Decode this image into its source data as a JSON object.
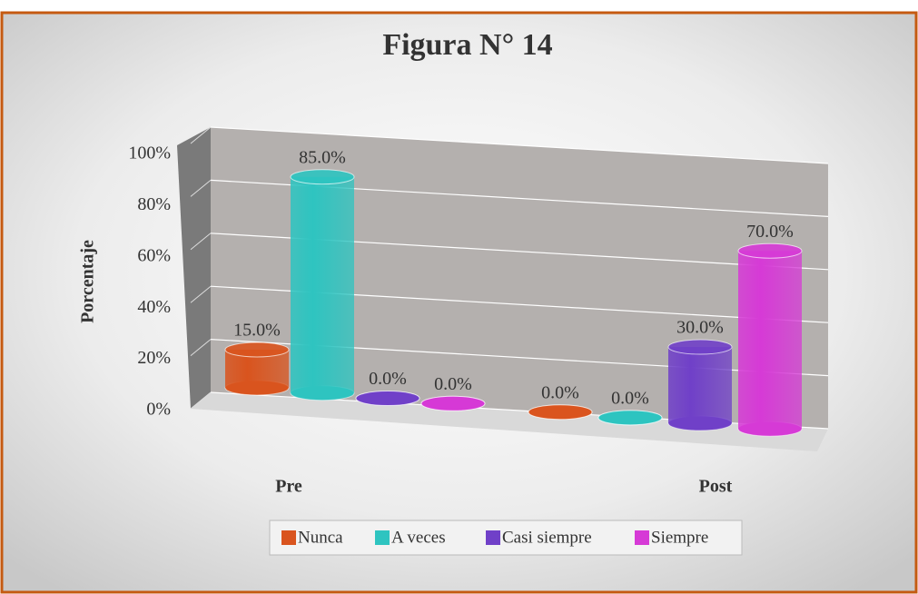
{
  "chart_data": {
    "type": "bar3d",
    "title": "Figura N° 14",
    "ylabel": "Porcentaje",
    "categories": [
      "Pre",
      "Post"
    ],
    "series": [
      {
        "name": "Nunca",
        "color": "#d9541e",
        "values": [
          15,
          0
        ],
        "value_labels": [
          "15.0%",
          "0.0%"
        ]
      },
      {
        "name": "A veces",
        "color": "#2ec4c0",
        "values": [
          85,
          0
        ],
        "value_labels": [
          "85.0%",
          "0.0%"
        ]
      },
      {
        "name": "Casi siempre",
        "color": "#7040c8",
        "values": [
          0,
          30
        ],
        "value_labels": [
          "0.0%",
          "30.0%"
        ]
      },
      {
        "name": "Siempre",
        "color": "#d63ad6",
        "values": [
          0,
          70
        ],
        "value_labels": [
          "0.0%",
          "70.0%"
        ]
      }
    ],
    "ylim": [
      0,
      100
    ],
    "yticks": [
      {
        "value": 0,
        "label": "0%"
      },
      {
        "value": 20,
        "label": "20%"
      },
      {
        "value": 40,
        "label": "40%"
      },
      {
        "value": 60,
        "label": "60%"
      },
      {
        "value": 80,
        "label": "80%"
      },
      {
        "value": 100,
        "label": "100%"
      }
    ],
    "grid": true,
    "legend": "bottom"
  }
}
